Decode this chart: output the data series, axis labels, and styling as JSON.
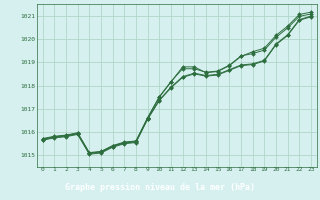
{
  "title": "Graphe pression niveau de la mer (hPa)",
  "background_color": "#d6f0f0",
  "plot_bg_color": "#d6f0f0",
  "grid_color": "#b0d8c8",
  "line_color": "#2d6e3e",
  "marker_color": "#2d6e3e",
  "title_bg": "#2d6e3e",
  "title_fg": "#ffffff",
  "xlim": [
    -0.5,
    23.5
  ],
  "ylim": [
    1014.5,
    1021.5
  ],
  "yticks": [
    1015,
    1016,
    1017,
    1018,
    1019,
    1020,
    1021
  ],
  "xticks": [
    0,
    1,
    2,
    3,
    4,
    5,
    6,
    7,
    8,
    9,
    10,
    11,
    12,
    13,
    14,
    15,
    16,
    17,
    18,
    19,
    20,
    21,
    22,
    23
  ],
  "series": [
    [
      1015.65,
      1015.75,
      1015.8,
      1015.9,
      1015.05,
      1015.1,
      1015.35,
      1015.5,
      1015.55,
      1016.55,
      1017.35,
      1017.9,
      1018.35,
      1018.5,
      1018.4,
      1018.45,
      1018.65,
      1018.85,
      1018.9,
      1019.05,
      1019.75,
      1020.15,
      1020.8,
      1020.95
    ],
    [
      1015.68,
      1015.78,
      1015.83,
      1015.93,
      1015.08,
      1015.13,
      1015.38,
      1015.53,
      1015.58,
      1016.58,
      1017.38,
      1017.93,
      1018.38,
      1018.53,
      1018.43,
      1018.48,
      1018.68,
      1018.88,
      1018.93,
      1019.08,
      1019.78,
      1020.18,
      1020.83,
      1020.98
    ],
    [
      1015.72,
      1015.82,
      1015.87,
      1015.97,
      1015.12,
      1015.17,
      1015.42,
      1015.57,
      1015.62,
      1016.62,
      1017.52,
      1018.17,
      1018.72,
      1018.72,
      1018.57,
      1018.62,
      1018.87,
      1019.27,
      1019.37,
      1019.52,
      1020.07,
      1020.47,
      1020.97,
      1021.07
    ],
    [
      1015.7,
      1015.8,
      1015.85,
      1015.95,
      1015.1,
      1015.15,
      1015.4,
      1015.55,
      1015.6,
      1016.6,
      1017.5,
      1018.15,
      1018.8,
      1018.8,
      1018.55,
      1018.6,
      1018.85,
      1019.25,
      1019.45,
      1019.6,
      1020.15,
      1020.55,
      1021.05,
      1021.15
    ]
  ]
}
